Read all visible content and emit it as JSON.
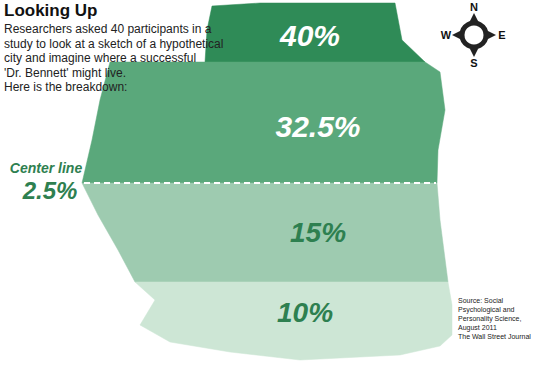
{
  "chart_data": {
    "type": "region",
    "title": "Looking Up",
    "subtitle": "Researchers asked 40 participants in a\nstudy to look at a sketch of a hypothetical\ncity and imagine where a successful\n'Dr. Bennett' might live.\nHere is the breakdown:",
    "categories": [
      null,
      null,
      "Center line",
      null,
      null
    ],
    "values": [
      40,
      32.5,
      2.5,
      15,
      10
    ],
    "value_labels": [
      "40%",
      "32.5%",
      "2.5%",
      "15%",
      "10%"
    ],
    "colors": [
      "#2f8b57",
      "#5aa87b",
      "#ffffff",
      "#9ecbb0",
      "#cde6d5"
    ],
    "data_labels": true,
    "compass": [
      "N",
      "E",
      "S",
      "W"
    ],
    "source": "Source: Social\nPsychological and\nPersonality Science,\nAugust 2011\nThe Wall Street Journal"
  }
}
